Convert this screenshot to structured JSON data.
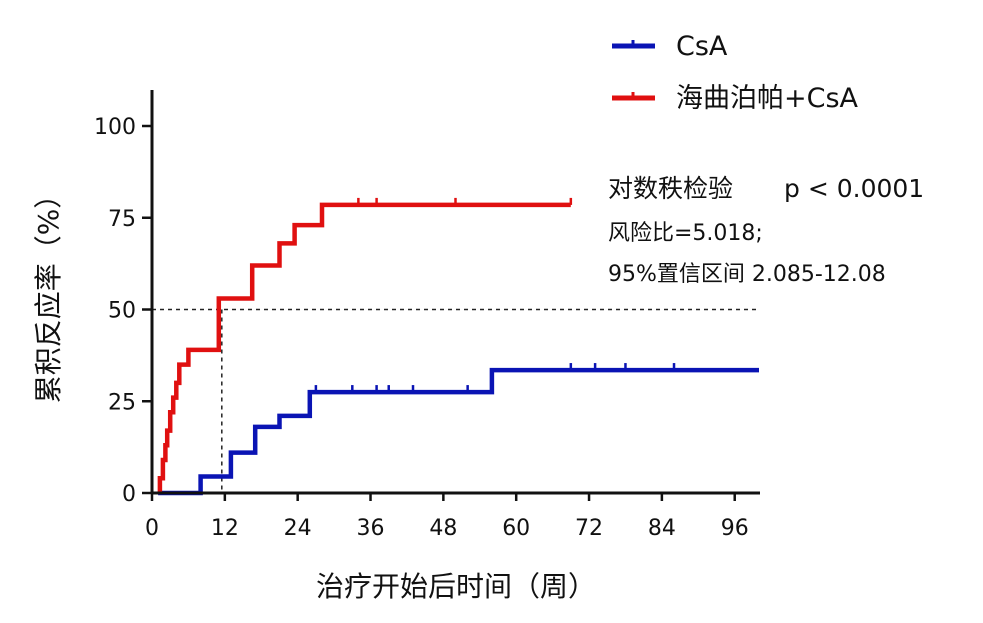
{
  "chart_data": {
    "type": "line",
    "subtype": "step-cumulative-response",
    "xlabel": "治疗开始后时间（周）",
    "ylabel": "累积反应率（%）",
    "xlim": [
      0,
      100
    ],
    "ylim": [
      0,
      110
    ],
    "xticks": [
      0,
      12,
      24,
      36,
      48,
      60,
      72,
      84,
      96
    ],
    "yticks": [
      0,
      25,
      50,
      75,
      100
    ],
    "grid": false,
    "legend_position": "top-right",
    "reference_line": {
      "y": 50,
      "x_cross": 11.5,
      "style": "dashed"
    },
    "annotations": {
      "test": "对数秩检验",
      "p_value": "p < 0.0001",
      "hazard_ratio": "风险比=5.018;",
      "ci": "95%置信区间 2.085-12.08"
    },
    "series": [
      {
        "name": "CsA",
        "color": "#0a14b4",
        "steps": [
          [
            1,
            0
          ],
          [
            8,
            0
          ],
          [
            8,
            4.5
          ],
          [
            13,
            4.5
          ],
          [
            13,
            11
          ],
          [
            17,
            11
          ],
          [
            17,
            18
          ],
          [
            21,
            18
          ],
          [
            21,
            21
          ],
          [
            26,
            21
          ],
          [
            26,
            27.5
          ],
          [
            56,
            27.5
          ],
          [
            56,
            33.5
          ],
          [
            100,
            33.5
          ]
        ],
        "censored": [
          [
            27,
            27.5
          ],
          [
            33,
            27.5
          ],
          [
            37,
            27.5
          ],
          [
            39,
            27.5
          ],
          [
            43,
            27.5
          ],
          [
            52,
            27.5
          ],
          [
            69,
            33.5
          ],
          [
            73,
            33.5
          ],
          [
            78,
            33.5
          ],
          [
            86,
            33.5
          ]
        ]
      },
      {
        "name": "海曲泊帕+CsA",
        "color": "#e01010",
        "steps": [
          [
            1.3,
            0
          ],
          [
            1.3,
            4
          ],
          [
            1.8,
            4
          ],
          [
            1.8,
            9
          ],
          [
            2.2,
            9
          ],
          [
            2.2,
            13
          ],
          [
            2.5,
            13
          ],
          [
            2.5,
            17
          ],
          [
            3,
            17
          ],
          [
            3,
            22
          ],
          [
            3.5,
            22
          ],
          [
            3.5,
            26
          ],
          [
            4,
            26
          ],
          [
            4,
            30
          ],
          [
            4.5,
            30
          ],
          [
            4.5,
            35
          ],
          [
            6,
            35
          ],
          [
            6,
            39
          ],
          [
            11,
            39
          ],
          [
            11,
            53
          ],
          [
            16.5,
            53
          ],
          [
            16.5,
            62
          ],
          [
            21,
            62
          ],
          [
            21,
            68
          ],
          [
            23.5,
            68
          ],
          [
            23.5,
            73
          ],
          [
            28,
            73
          ],
          [
            28,
            78.5
          ],
          [
            69,
            78.5
          ]
        ],
        "censored": [
          [
            34,
            78.5
          ],
          [
            37,
            78.5
          ],
          [
            50,
            78.5
          ],
          [
            69,
            78.5
          ]
        ]
      }
    ]
  }
}
